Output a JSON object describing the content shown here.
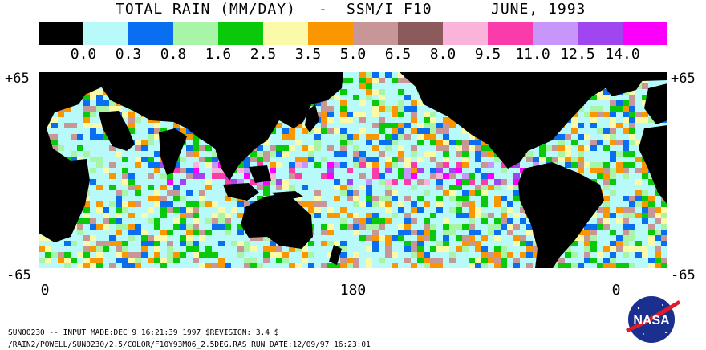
{
  "title": {
    "main": "TOTAL RAIN (MM/DAY)",
    "dash": "-",
    "sensor": "SSM/I F10",
    "date": "JUNE, 1993"
  },
  "legend": {
    "swatches": [
      "#000000",
      "#b8fafa",
      "#0a6ef0",
      "#a8f5a8",
      "#0ac80a",
      "#fafaa8",
      "#fa9600",
      "#c89696",
      "#8c5a5a",
      "#fab4dc",
      "#fa3caa",
      "#c896fa",
      "#a046f0",
      "#fa00fa"
    ],
    "labels": [
      "0.0",
      "0.3",
      "0.8",
      "1.6",
      "2.5",
      "3.5",
      "5.0",
      "6.5",
      "8.0",
      "9.5",
      "11.0",
      "12.5",
      "14.0"
    ]
  },
  "axes": {
    "lat_top_left": "+65",
    "lat_top_right": "+65",
    "lat_bottom_left": "-65",
    "lat_bottom_right": "-65",
    "lon_left": "0",
    "lon_center": "180",
    "lon_right": "0"
  },
  "footer": {
    "line1": "SUN00230  --  INPUT MADE:DEC  9 16:21:39 1997 $REVISION: 3.4 $",
    "line2": "/RAIN2/POWELL/SUN0230/2.5/COLOR/F10Y93M06_2.5DEG.RAS  RUN DATE:12/09/97 16:23:01"
  },
  "logo": {
    "text": "NASA",
    "icon": "nasa-meatball-icon",
    "colors": {
      "circle": "#1b2f8f",
      "chevron": "#e01b24",
      "text": "#ffffff"
    }
  },
  "map": {
    "icon": "world-rain-map",
    "land_color": "#000000",
    "ocean_base": "#b8fafa"
  }
}
